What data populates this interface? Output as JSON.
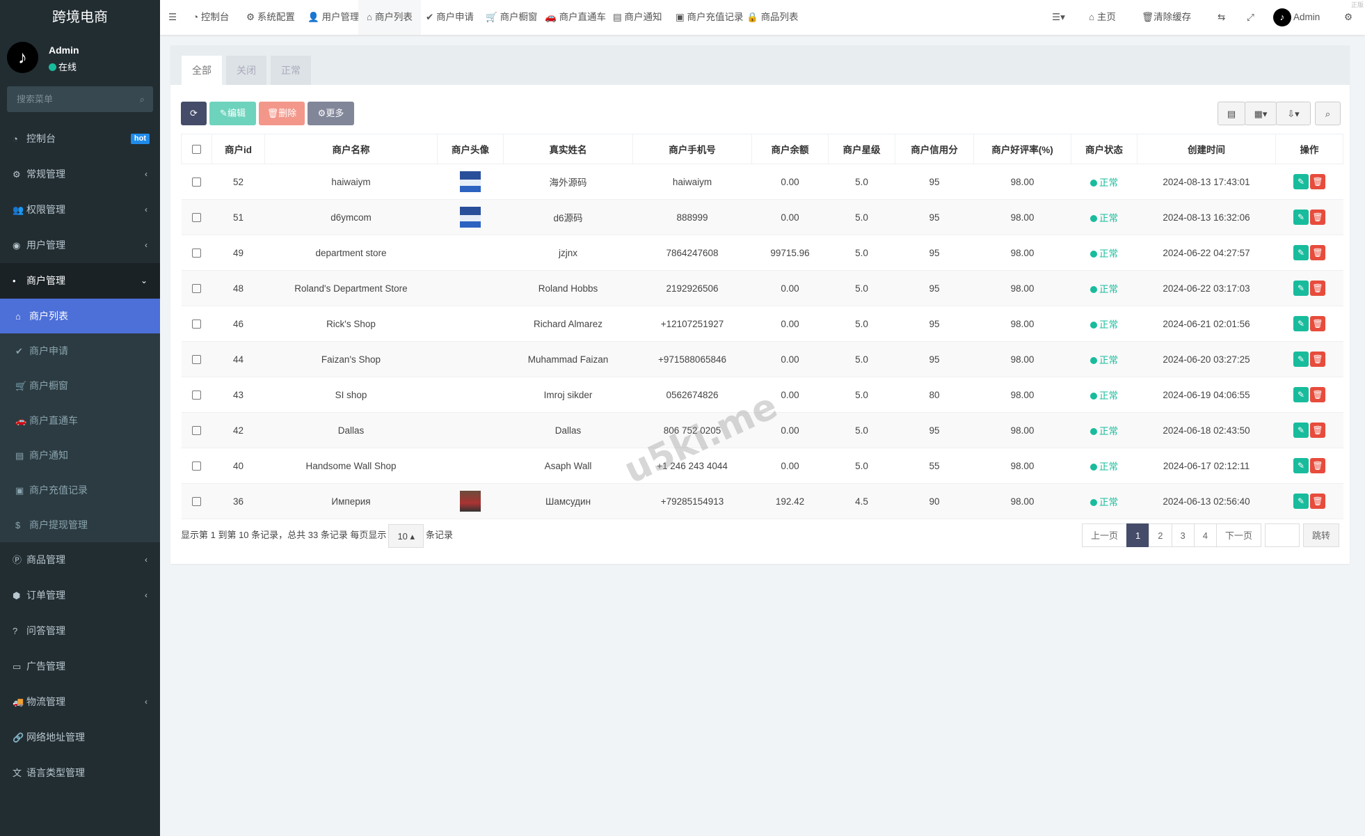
{
  "app": {
    "title": "跨境电商",
    "corner_text": "正版"
  },
  "user": {
    "name": "Admin",
    "status": "在线"
  },
  "sidebar": {
    "search_placeholder": "搜索菜单",
    "items": [
      {
        "label": "控制台",
        "icon": "dashboard-icon",
        "badge": "hot"
      },
      {
        "label": "常规管理",
        "icon": "cogs-icon"
      },
      {
        "label": "权限管理",
        "icon": "group-icon"
      },
      {
        "label": "用户管理",
        "icon": "user-circle-icon"
      },
      {
        "label": "商户管理",
        "icon": "apple-icon"
      }
    ],
    "sub_items": [
      {
        "label": "商户列表",
        "icon": "home-icon"
      },
      {
        "label": "商户申请",
        "icon": "check-circle-icon"
      },
      {
        "label": "商户橱窗",
        "icon": "cart-icon"
      },
      {
        "label": "商户直通车",
        "icon": "car-icon"
      },
      {
        "label": "商户通知",
        "icon": "list-alt-icon"
      },
      {
        "label": "商户充值记录",
        "icon": "money-icon"
      },
      {
        "label": "商户提现管理",
        "icon": "dollar-icon"
      }
    ],
    "items_after": [
      {
        "label": "商品管理",
        "icon": "product-icon"
      },
      {
        "label": "订单管理",
        "icon": "cube-icon"
      },
      {
        "label": "问答管理",
        "icon": "question-icon"
      },
      {
        "label": "广告管理",
        "icon": "ad-icon"
      },
      {
        "label": "物流管理",
        "icon": "truck-icon"
      },
      {
        "label": "网络地址管理",
        "icon": "link-icon"
      },
      {
        "label": "语言类型管理",
        "icon": "language-icon"
      }
    ]
  },
  "topnav": {
    "tabs": [
      "控制台",
      "系统配置",
      "用户管理",
      "商户列表",
      "商户申请",
      "商户橱窗",
      "商户直通车",
      "商户通知",
      "商户充值记录",
      "商品列表"
    ],
    "home": "主页",
    "clear_cache": "清除缓存",
    "admin": "Admin"
  },
  "filter_tabs": [
    "全部",
    "关闭",
    "正常"
  ],
  "toolbar": {
    "edit": "编辑",
    "delete": "删除",
    "more": "更多"
  },
  "table": {
    "headers": [
      "商户id",
      "商户名称",
      "商户头像",
      "真实姓名",
      "商户手机号",
      "商户余额",
      "商户星级",
      "商户信用分",
      "商户好评率(%)",
      "商户状态",
      "创建时间",
      "操作"
    ],
    "rows": [
      [
        "52",
        "haiwaiym",
        "img",
        "海外源码",
        "haiwaiym",
        "0.00",
        "5.0",
        "95",
        "98.00",
        "正常",
        "2024-08-13 17:43:01"
      ],
      [
        "51",
        "d6ymcom",
        "img",
        "d6源码",
        "888999",
        "0.00",
        "5.0",
        "95",
        "98.00",
        "正常",
        "2024-08-13 16:32:06"
      ],
      [
        "49",
        "department store",
        "",
        "jzjnx",
        "7864247608",
        "99715.96",
        "5.0",
        "95",
        "98.00",
        "正常",
        "2024-06-22 04:27:57"
      ],
      [
        "48",
        "Roland's Department Store",
        "",
        "Roland Hobbs",
        "2192926506",
        "0.00",
        "5.0",
        "95",
        "98.00",
        "正常",
        "2024-06-22 03:17:03"
      ],
      [
        "46",
        "Rick's Shop",
        "",
        "Richard Almarez",
        "+12107251927",
        "0.00",
        "5.0",
        "95",
        "98.00",
        "正常",
        "2024-06-21 02:01:56"
      ],
      [
        "44",
        "Faizan's Shop",
        "",
        "Muhammad Faizan",
        "+971588065846",
        "0.00",
        "5.0",
        "95",
        "98.00",
        "正常",
        "2024-06-20 03:27:25"
      ],
      [
        "43",
        "SI shop",
        "",
        "Imroj sikder",
        "0562674826",
        "0.00",
        "5.0",
        "80",
        "98.00",
        "正常",
        "2024-06-19 04:06:55"
      ],
      [
        "42",
        "Dallas",
        "",
        "Dallas",
        "806 752 0205",
        "0.00",
        "5.0",
        "95",
        "98.00",
        "正常",
        "2024-06-18 02:43:50"
      ],
      [
        "40",
        "Handsome Wall Shop",
        "",
        "Asaph Wall",
        "+1 246 243 4044",
        "0.00",
        "5.0",
        "55",
        "98.00",
        "正常",
        "2024-06-17 02:12:11"
      ],
      [
        "36",
        "Империя",
        "car",
        "Шамсудин",
        "+79285154913",
        "192.42",
        "4.5",
        "90",
        "98.00",
        "正常",
        "2024-06-13 02:56:40"
      ]
    ]
  },
  "footer": {
    "text_before": "显示第 1 到第 10 条记录，总共 33 条记录 每页显示",
    "page_size": "10",
    "text_after": "条记录"
  },
  "pagination": {
    "prev": "上一页",
    "pages": [
      "1",
      "2",
      "3",
      "4"
    ],
    "current": "1",
    "next": "下一页",
    "jump": "跳转"
  },
  "watermark": "u5ki.me",
  "colors": {
    "sidebar": "#222d32",
    "active": "#4c6fd8",
    "primary": "#444c69",
    "success": "#18bc9c",
    "danger": "#e74c3c"
  }
}
